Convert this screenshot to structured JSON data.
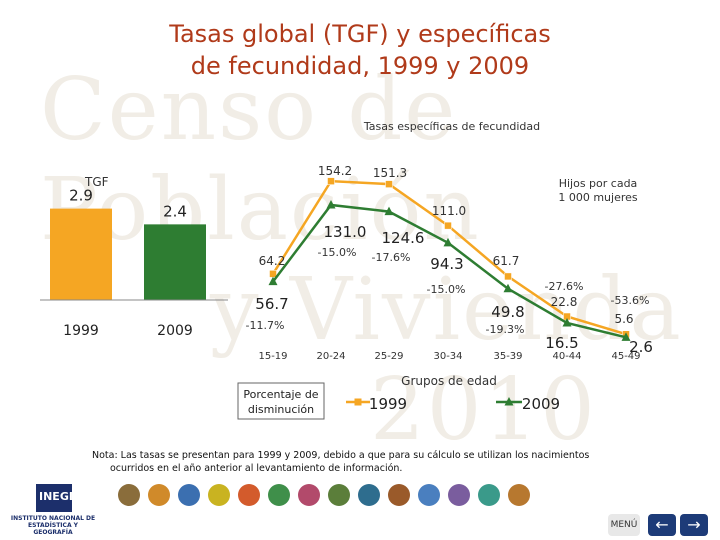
{
  "title_line1": "Tasas global (TGF) y específicas",
  "title_line2": "de fecundidad, 1999 y 2009",
  "watermark_line1": "Censo de Población",
  "watermark_line2": "y Vivienda",
  "watermark_line3": "2010",
  "note_line1": "Nota: Las tasas se presentan para 1999 y 2009, debido a que para su cálculo se utilizan los nacimientos",
  "note_line2": "ocurridos en el año anterior al levantamiento de información.",
  "logo": {
    "name": "INEGI",
    "subtitle": "INSTITUTO NACIONAL DE ESTADÍSTICA Y GEOGRAFÍA"
  },
  "nav": {
    "menu_label": "MENÚ",
    "back_icon": "arrow-left-icon",
    "forward_icon": "arrow-right-icon"
  },
  "colors": {
    "title": "#b03a1a",
    "bar_1999": "#f5a623",
    "bar_2009": "#2e7d32",
    "line_1999": "#f5a623",
    "line_2009": "#2e7d32"
  },
  "chart_data": [
    {
      "type": "bar",
      "title": "TGF",
      "categories": [
        "1999",
        "2009"
      ],
      "values": [
        2.9,
        2.4
      ],
      "value_labels": [
        "2.9",
        "2.4"
      ],
      "ylim": [
        0,
        3.3
      ]
    },
    {
      "type": "line",
      "title": "Tasas específicas de fecundidad",
      "subtitle": "Hijos por cada 1 000 mujeres",
      "xlabel": "Grupos de edad",
      "categories": [
        "15-19",
        "20-24",
        "25-29",
        "30-34",
        "35-39",
        "40-44",
        "45-49"
      ],
      "series": [
        {
          "name": "1999",
          "values": [
            64.2,
            154.2,
            151.3,
            111.0,
            61.7,
            22.8,
            5.6
          ],
          "labels": [
            "64.2",
            "154.2",
            "151.3",
            "111.0",
            "61.7",
            "22.8",
            "5.6"
          ]
        },
        {
          "name": "2009",
          "values": [
            56.7,
            131.0,
            124.6,
            94.3,
            49.8,
            16.5,
            2.6
          ],
          "labels": [
            "56.7",
            "131.0",
            "124.6",
            "94.3",
            "49.8",
            "16.5",
            "2.6"
          ]
        }
      ],
      "change_title": "Porcentaje de disminución",
      "changes": [
        "-11.7%",
        "-15.0%",
        "-17.6%",
        "-15.0%",
        "-19.3%",
        "-27.6%",
        "-53.6%"
      ],
      "ylim": [
        0,
        165
      ]
    }
  ]
}
